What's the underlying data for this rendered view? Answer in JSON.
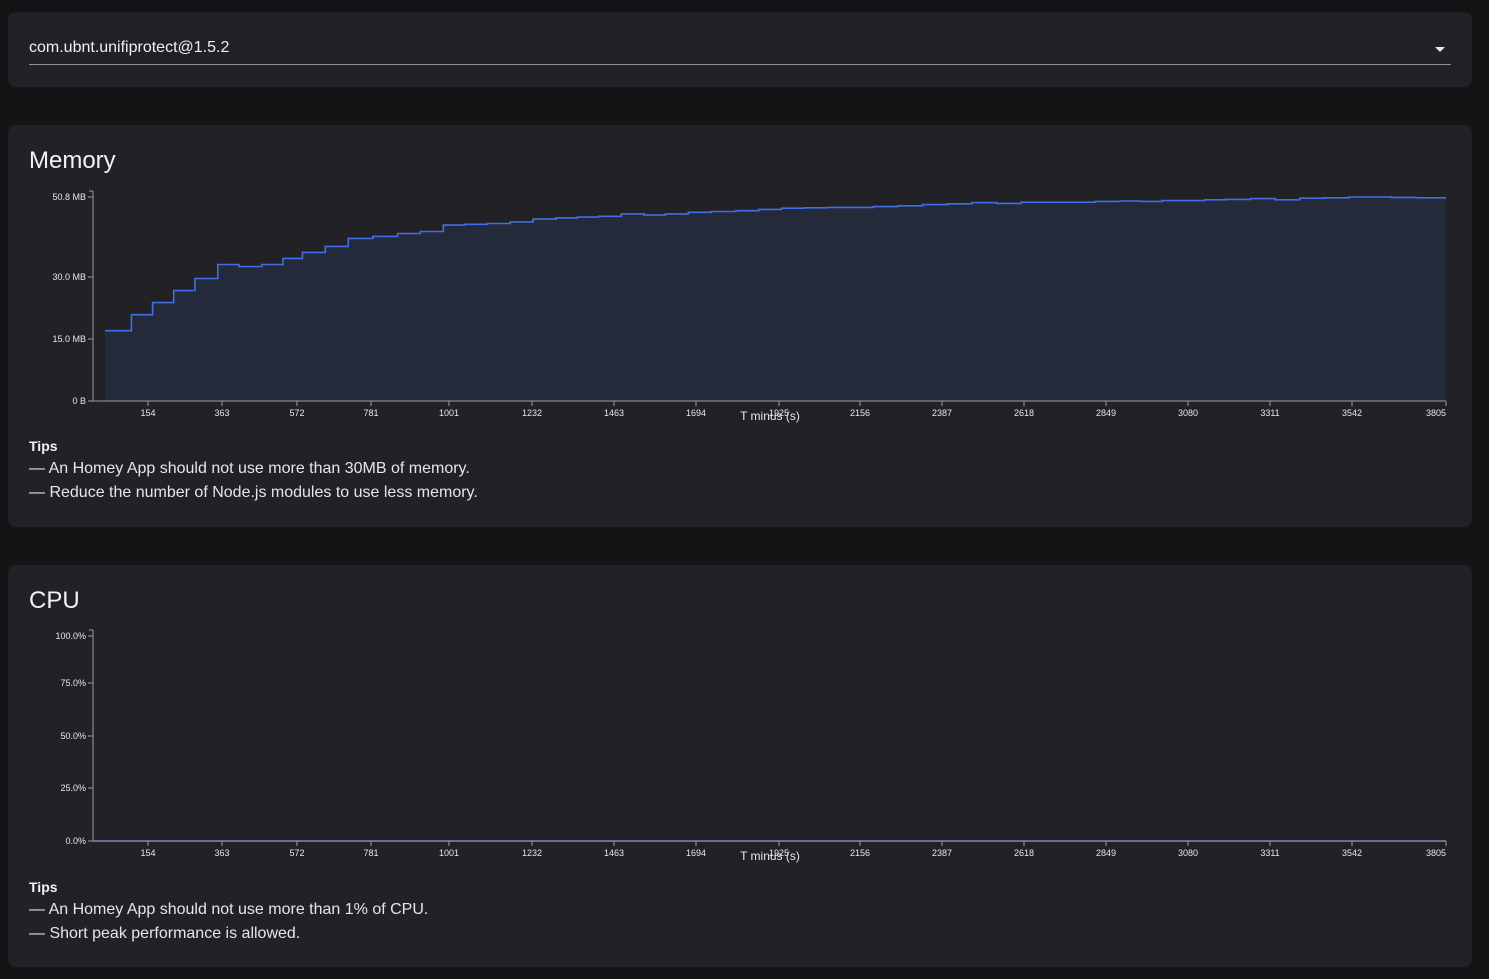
{
  "app_selector": {
    "selected": "com.ubnt.unifiprotect@1.5.2"
  },
  "memory": {
    "title": "Memory",
    "tips_heading": "Tips",
    "tips": [
      "— An Homey App should not use more than 30MB of memory.",
      "— Reduce the number of Node.js modules to use less memory."
    ],
    "chart_data": {
      "type": "area",
      "xlabel": "T minus (s)",
      "x_tick_labels": [
        "154",
        "363",
        "572",
        "781",
        "1001",
        "1232",
        "1463",
        "1694",
        "1925",
        "2156",
        "2387",
        "2618",
        "2849",
        "3080",
        "3311",
        "3542",
        "3805"
      ],
      "y_tick_labels": [
        "0 B",
        "15.0 MB",
        "30.0 MB",
        "50.8 MB"
      ],
      "ylim": [
        0,
        50.8
      ],
      "yunit": "MB",
      "step": true,
      "x": [
        0,
        75,
        135,
        195,
        255,
        320,
        380,
        445,
        505,
        560,
        625,
        690,
        760,
        830,
        895,
        960,
        1020,
        1085,
        1150,
        1215,
        1280,
        1340,
        1400,
        1465,
        1530,
        1590,
        1655,
        1720,
        1790,
        1855,
        1920,
        1985,
        2050,
        2115,
        2180,
        2250,
        2320,
        2390,
        2460,
        2530,
        2600,
        2670,
        2740,
        2810,
        2880,
        2940,
        3000,
        3060,
        3120,
        3180,
        3250,
        3320,
        3390,
        3460,
        3530,
        3590,
        3650,
        3720,
        3805
      ],
      "values": [
        17.5,
        21.5,
        24.5,
        27.5,
        30.5,
        34.0,
        33.5,
        34.0,
        35.5,
        37.0,
        38.5,
        40.5,
        41.0,
        41.7,
        42.2,
        43.8,
        44.0,
        44.2,
        44.6,
        45.3,
        45.6,
        45.8,
        46.0,
        46.6,
        46.3,
        46.6,
        47.0,
        47.2,
        47.4,
        47.7,
        48.0,
        48.1,
        48.2,
        48.2,
        48.4,
        48.6,
        48.9,
        49.1,
        49.4,
        49.2,
        49.5,
        49.5,
        49.5,
        49.7,
        49.8,
        49.7,
        49.9,
        49.9,
        50.1,
        50.2,
        50.4,
        50.1,
        50.5,
        50.6,
        50.8,
        50.8,
        50.7,
        50.6,
        50.6
      ],
      "series_color": "#3f6ee8",
      "fill_color": "#252a3a"
    }
  },
  "cpu": {
    "title": "CPU",
    "tips_heading": "Tips",
    "tips": [
      "— An Homey App should not use more than 1% of CPU.",
      "— Short peak performance is allowed."
    ],
    "chart_data": {
      "type": "line",
      "xlabel": "T minus (s)",
      "x_tick_labels": [
        "154",
        "363",
        "572",
        "781",
        "1001",
        "1232",
        "1463",
        "1694",
        "1925",
        "2156",
        "2387",
        "2618",
        "2849",
        "3080",
        "3311",
        "3542",
        "3805"
      ],
      "y_tick_labels": [
        "0.0%",
        "25.0%",
        "50.0%",
        "75.0%",
        "100.0%"
      ],
      "ylim": [
        0,
        100
      ],
      "yunit": "%",
      "x": [
        0,
        3805
      ],
      "values": [
        0,
        0
      ],
      "series_color": "#3f6ee8"
    }
  }
}
